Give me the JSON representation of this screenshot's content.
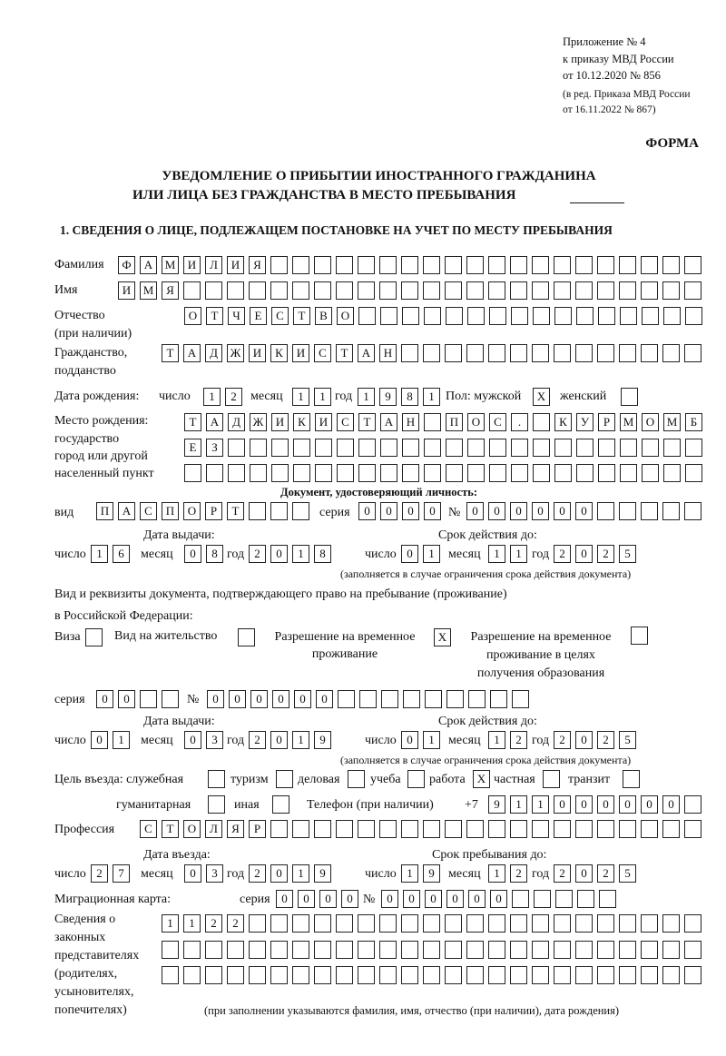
{
  "header": {
    "appendix": "Приложение № 4",
    "order": "к приказу МВД России",
    "order_date": "от 10.12.2020 № 856",
    "edition1": "(в ред. Приказа МВД России",
    "edition2": "от 16.11.2022 № 867)",
    "forma": "ФОРМА",
    "title1": "УВЕДОМЛЕНИЕ О ПРИБЫТИИ ИНОСТРАННОГО ГРАЖДАНИНА",
    "title2": "ИЛИ ЛИЦА БЕЗ ГРАЖДАНСТВА В МЕСТО ПРЕБЫВАНИЯ"
  },
  "section1": {
    "title": "1. СВЕДЕНИЯ О ЛИЦЕ, ПОДЛЕЖАЩЕМ ПОСТАНОВКЕ НА УЧЕТ ПО МЕСТУ ПРЕБЫВАНИЯ"
  },
  "person": {
    "surname_label": "Фамилия",
    "surname": "ФАМИЛИЯ",
    "name_label": "Имя",
    "name": "ИМЯ",
    "patronymic_label1": "Отчество",
    "patronymic_label2": "(при наличии)",
    "patronymic": "ОТЧЕСТВО",
    "citizenship_label1": "Гражданство,",
    "citizenship_label2": "подданство",
    "citizenship": "ТАДЖИКИСТАН",
    "birth_label": "Дата рождения:",
    "day_label": "число",
    "month_label": "месяц",
    "year_label": "год",
    "birth_day": "12",
    "birth_month": "11",
    "birth_year": "1981",
    "sex_label": "Пол: мужской",
    "male": "X",
    "female_label": "женский",
    "female": "",
    "birthplace_label1": "Место рождения:",
    "birthplace_label2": "государство",
    "birthplace_label3": "город или другой",
    "birthplace_label4": "населенный пункт",
    "birthplace_row1": "ТАДЖИКИСТАН ПОС. КУРМОМБ",
    "birthplace_row2": "ЕЗ",
    "birthplace_row3": ""
  },
  "id_doc": {
    "heading": "Документ, удостоверяющий личность:",
    "kind_label": "вид",
    "kind": "ПАСПОРТ",
    "series_label": "серия",
    "series": "0000",
    "number_label": "№",
    "number": "000000",
    "issue_label": "Дата выдачи:",
    "valid_label": "Срок действия до:",
    "day_label": "число",
    "month_label": "месяц",
    "year_label": "год",
    "issue_day": "16",
    "issue_month": "08",
    "issue_year": "2018",
    "valid_day": "01",
    "valid_month": "11",
    "valid_year": "2025",
    "note": "(заполняется в случае ограничения срока действия документа)"
  },
  "stay_doc": {
    "heading1": "Вид и реквизиты документа, подтверждающего право на пребывание (проживание)",
    "heading2": "в Российской Федерации:",
    "visa_label": "Виза",
    "visa": "",
    "residence_label": "Вид на жительство",
    "residence": "",
    "temp_label1": "Разрешение на временное",
    "temp_label2": "проживание",
    "temp": "X",
    "edu_label1": "Разрешение на временное",
    "edu_label2": "проживание в целях",
    "edu_label3": "получения образования",
    "edu": "",
    "series_label": "серия",
    "series": "00",
    "number_label": "№",
    "number": "000000",
    "issue_label": "Дата выдачи:",
    "valid_label": "Срок действия до:",
    "day_label": "число",
    "month_label": "месяц",
    "year_label": "год",
    "issue_day": "01",
    "issue_month": "03",
    "issue_year": "2019",
    "valid_day": "01",
    "valid_month": "12",
    "valid_year": "2025",
    "note": "(заполняется в случае ограничения срока действия документа)"
  },
  "purpose": {
    "label": "Цель въезда: служебная",
    "service": "",
    "tourism_label": "туризм",
    "tourism": "",
    "business_label": "деловая",
    "business": "",
    "study_label": "учеба",
    "study": "",
    "work_label": "работа",
    "work": "X",
    "private_label": "частная",
    "private": "",
    "transit_label": "транзит",
    "transit": "",
    "humanitarian_label": "гуманитарная",
    "humanitarian": "",
    "other_label": "иная",
    "other": "",
    "phone_label": "Телефон (при наличии)",
    "phone_prefix": "+7",
    "phone": "911000000"
  },
  "profession": {
    "label": "Профессия",
    "value": "СТОЛЯР"
  },
  "entry": {
    "entry_label": "Дата въезда:",
    "stay_label": "Срок пребывания до:",
    "day_label": "число",
    "month_label": "месяц",
    "year_label": "год",
    "entry_day": "27",
    "entry_month": "03",
    "entry_year": "2019",
    "stay_day": "19",
    "stay_month": "12",
    "stay_year": "2025"
  },
  "migration_card": {
    "label": "Миграционная карта:",
    "series_label": "серия",
    "series": "0000",
    "number_label": "№",
    "number": "000000"
  },
  "representatives": {
    "label1": "Сведения о",
    "label2": "законных",
    "label3": "представителях",
    "label4": "(родителях,",
    "label5": "усыновителях,",
    "label6": "попечителях)",
    "row1": "1122",
    "row2": "",
    "row3": "",
    "note": "(при заполнении указываются фамилия, имя, отчество (при наличии), дата рождения)"
  }
}
